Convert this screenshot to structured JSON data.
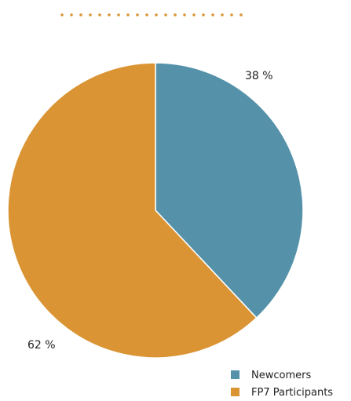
{
  "chart_data": {
    "type": "pie",
    "start_angle_deg": 0,
    "direction": "clockwise",
    "slices": [
      {
        "name": "Newcomers",
        "value": 38,
        "label": "38 %",
        "color": "#5592AA"
      },
      {
        "name": "FP7 Participants",
        "value": 62,
        "label": "62 %",
        "color": "#DA9434"
      }
    ],
    "legend": {
      "position": "bottom-right",
      "items": [
        {
          "label": "Newcomers",
          "color": "#5592AA"
        },
        {
          "label": "FP7 Participants",
          "color": "#DA9434"
        }
      ]
    }
  },
  "decoration": {
    "dotted_rule_color": "#DA9434"
  }
}
